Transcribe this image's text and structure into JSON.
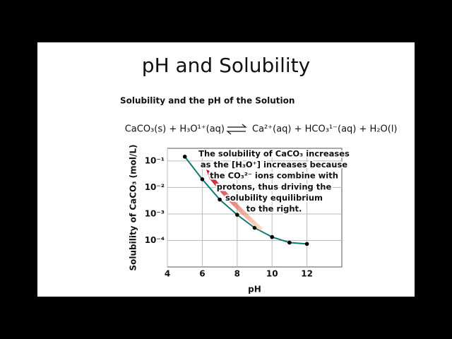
{
  "title": "pH and Solubility",
  "subtitle": "Solubility and the pH of the Solution",
  "equation": {
    "left": "CaCO₃(s) + H₃O¹⁺(aq)",
    "right": "Ca²⁺(aq) + HCO₃¹⁻(aq) + H₂O(l)"
  },
  "chart_data": {
    "type": "line",
    "x_label": "pH",
    "y_label": "Solubility of CaCO₃ (mol/L)",
    "x": [
      5,
      6,
      7,
      8,
      9,
      10,
      11,
      12
    ],
    "series": [
      {
        "name": "Solubility",
        "color": "#137a73",
        "values": [
          0.145,
          0.0204,
          0.0035,
          0.00093,
          0.0003,
          0.000135,
          8.3e-05,
          7.4e-05
        ]
      }
    ],
    "xlim": [
      4,
      14
    ],
    "xticks": [
      4,
      6,
      8,
      10,
      12
    ],
    "ylim": [
      1e-05,
      0.3
    ],
    "yticks": [
      {
        "value": 0.1,
        "label": "10⁻¹"
      },
      {
        "value": 0.01,
        "label": "10⁻²"
      },
      {
        "value": 0.001,
        "label": "10⁻³"
      },
      {
        "value": 0.0001,
        "label": "10⁻⁴"
      }
    ],
    "log_y": true,
    "grid": true,
    "annotation": [
      "The solubility of CaCO₃ increases",
      "as the [H₃O⁺] increases because",
      "the CO₃²⁻ ions combine with",
      "protons, thus driving the",
      "solubility equilibrium",
      "to the right."
    ]
  }
}
